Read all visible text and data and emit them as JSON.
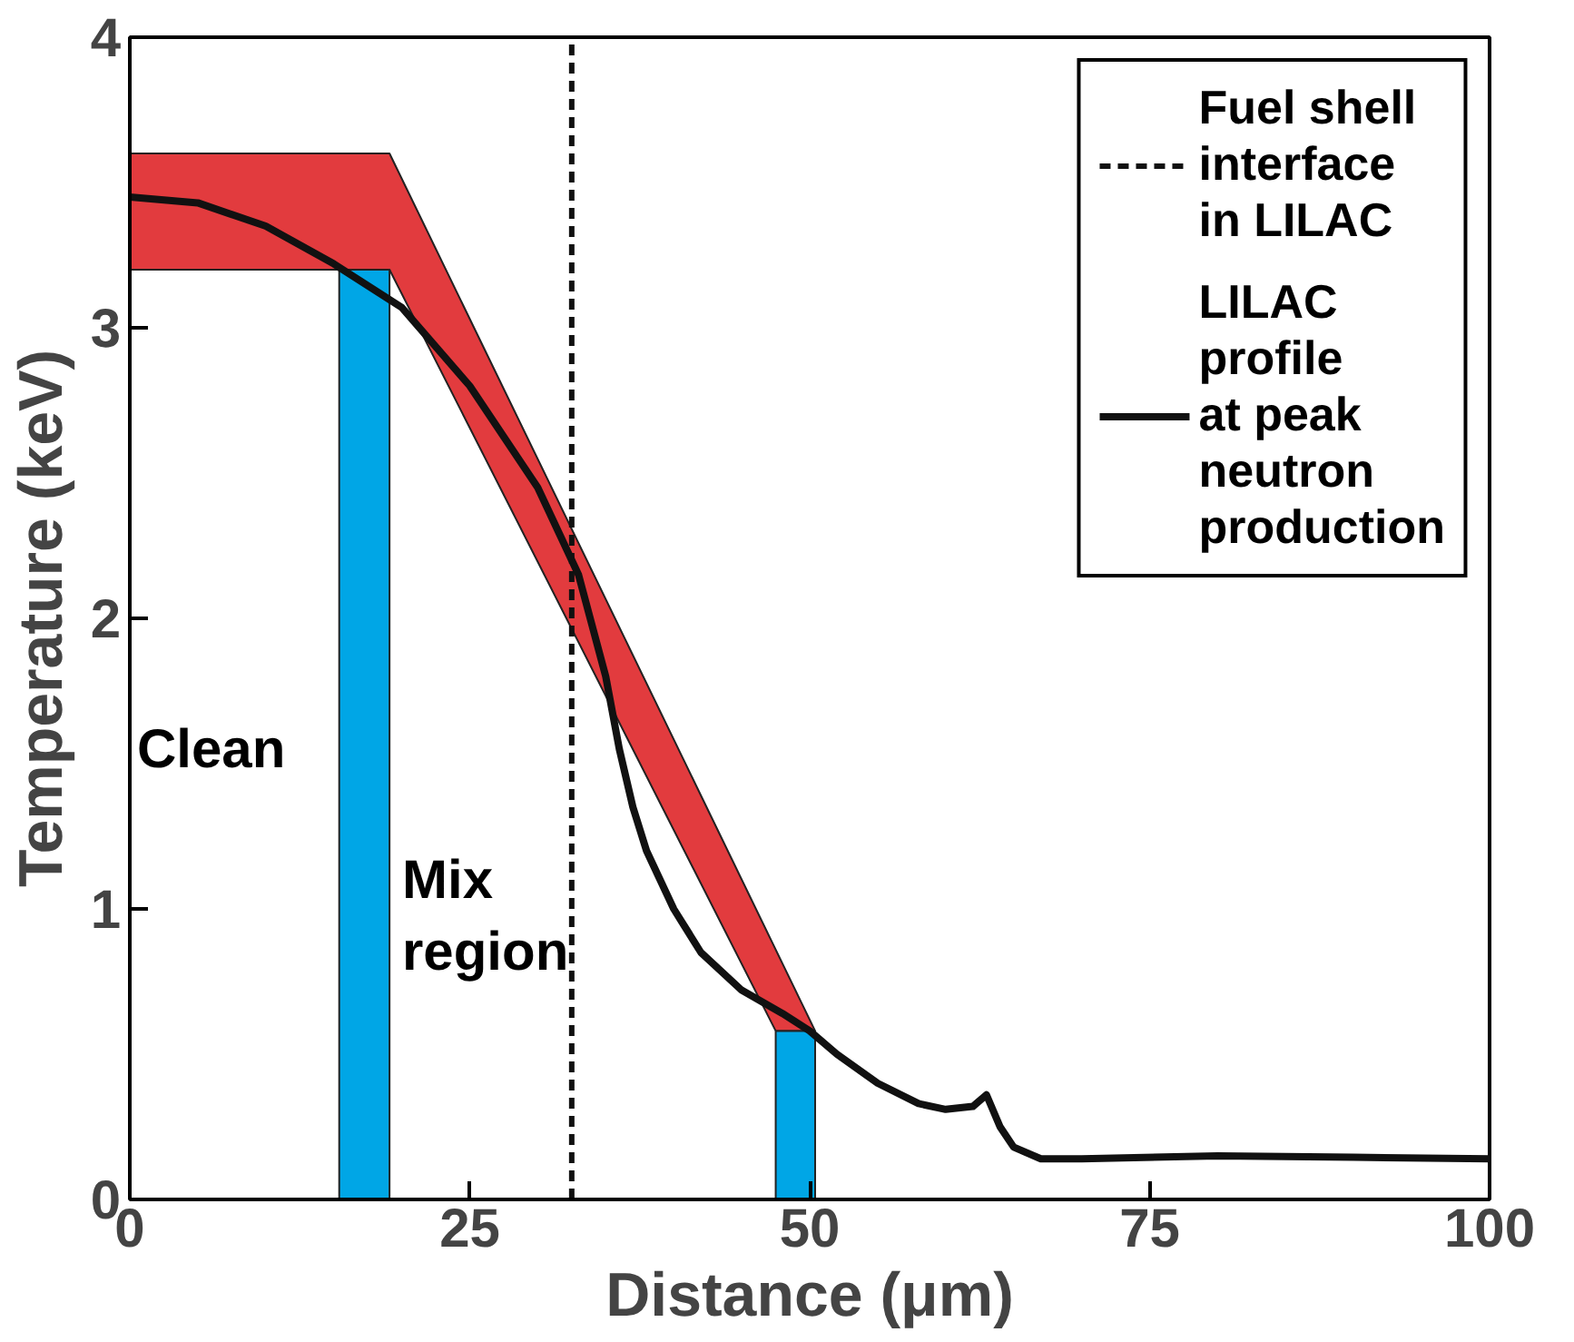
{
  "chart_data": {
    "type": "line",
    "xlabel": "Distance (μm)",
    "ylabel": "Temperature (keV)",
    "xlim": [
      0,
      100
    ],
    "ylim": [
      0,
      4
    ],
    "xticks": [
      0,
      25,
      50,
      75,
      100
    ],
    "yticks": [
      0,
      1,
      2,
      3,
      4
    ],
    "grid": false,
    "legend": "top right",
    "series": [
      {
        "type": "area",
        "color": "#e23b3e",
        "x": [
          0,
          19.1,
          50.4,
          47.5,
          19.1,
          0
        ],
        "values": [
          3.6,
          3.6,
          0.58,
          0.58,
          3.2,
          3.2
        ]
      },
      {
        "type": "area",
        "color": "#00a6e6",
        "x": [
          15.4,
          19.1
        ],
        "values": [
          3.2,
          3.2
        ]
      },
      {
        "type": "area",
        "color": "#00a6e6",
        "x": [
          47.5,
          50.4
        ],
        "values": [
          0.58,
          0.58
        ]
      },
      {
        "type": "line",
        "name": "Fuel shell\ninterface\nin LILAC",
        "color": "#111111",
        "line_style": "dashed",
        "x": [
          32.5,
          32.5
        ],
        "values": [
          0,
          4
        ]
      },
      {
        "name": "LILAC\nprofile\nat peak\nneutron\nproduction",
        "color": "#111111",
        "x": [
          0,
          5,
          10,
          15,
          20,
          25,
          30,
          33,
          35,
          36,
          37,
          38,
          40,
          42,
          45,
          48,
          50,
          52,
          55,
          58,
          60,
          62,
          63,
          64,
          65,
          67,
          70,
          80,
          90,
          100
        ],
        "values": [
          3.45,
          3.43,
          3.35,
          3.22,
          3.07,
          2.8,
          2.45,
          2.15,
          1.8,
          1.55,
          1.35,
          1.2,
          1.0,
          0.85,
          0.72,
          0.64,
          0.58,
          0.5,
          0.4,
          0.33,
          0.31,
          0.32,
          0.36,
          0.25,
          0.18,
          0.14,
          0.14,
          0.15,
          0.145,
          0.14
        ]
      }
    ],
    "annotations": [
      "Clean",
      "Mix\nregion"
    ]
  }
}
